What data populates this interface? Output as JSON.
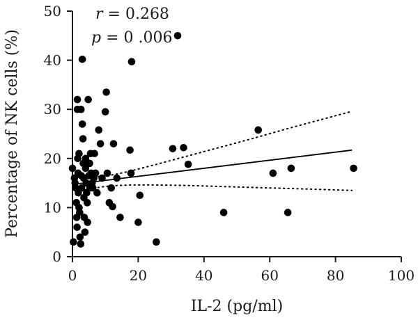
{
  "chart_data": {
    "type": "scatter",
    "title": "",
    "xlabel": "IL-2 (pg/ml)",
    "ylabel": "Percentage of NK cells (%)",
    "xlim": [
      0,
      100
    ],
    "ylim": [
      0,
      50
    ],
    "x_ticks": [
      "0",
      "20",
      "40",
      "60",
      "80",
      "100"
    ],
    "y_ticks": [
      "0",
      "10",
      "20",
      "30",
      "40",
      "50"
    ],
    "grid": false,
    "annotations": {
      "r_symbol": "r",
      "r_value": " = 0.268",
      "p_symbol": "p",
      "p_value": " = 0 .006"
    },
    "colors": {
      "points": "#000000",
      "axes": "#1a1a1a",
      "fit": "#000000"
    },
    "points": [
      [
        0,
        18
      ],
      [
        0.3,
        3
      ],
      [
        0.6,
        16
      ],
      [
        0.8,
        15
      ],
      [
        1,
        14
      ],
      [
        1.2,
        11
      ],
      [
        1.3,
        8
      ],
      [
        1.4,
        6
      ],
      [
        1.5,
        32
      ],
      [
        1.5,
        30
      ],
      [
        1.6,
        20
      ],
      [
        1.7,
        17
      ],
      [
        1.8,
        13
      ],
      [
        2,
        21
      ],
      [
        2,
        10
      ],
      [
        2.2,
        9
      ],
      [
        2.3,
        4
      ],
      [
        2.5,
        2.6
      ],
      [
        2.6,
        30
      ],
      [
        2.7,
        16.5
      ],
      [
        2.8,
        14
      ],
      [
        3,
        27
      ],
      [
        3,
        40.2
      ],
      [
        3.2,
        24
      ],
      [
        3.3,
        19
      ],
      [
        3.4,
        16
      ],
      [
        3.5,
        12
      ],
      [
        3.6,
        8
      ],
      [
        3.8,
        5
      ],
      [
        4,
        20
      ],
      [
        4,
        18
      ],
      [
        4.2,
        15
      ],
      [
        4.3,
        13
      ],
      [
        4.5,
        11
      ],
      [
        4.6,
        7
      ],
      [
        4.8,
        32
      ],
      [
        5,
        16.5
      ],
      [
        5.2,
        19
      ],
      [
        5.3,
        14
      ],
      [
        5.5,
        21
      ],
      [
        5.7,
        17
      ],
      [
        6,
        15
      ],
      [
        6.2,
        14
      ],
      [
        6.5,
        16
      ],
      [
        6.7,
        21
      ],
      [
        7,
        17
      ],
      [
        7.5,
        13
      ],
      [
        8,
        25.8
      ],
      [
        8.5,
        23
      ],
      [
        9,
        16
      ],
      [
        10,
        29.5
      ],
      [
        10.3,
        33.5
      ],
      [
        10.6,
        17
      ],
      [
        11.2,
        11
      ],
      [
        11.8,
        14
      ],
      [
        12.2,
        10.2
      ],
      [
        12.5,
        23
      ],
      [
        13.5,
        16
      ],
      [
        14.5,
        8
      ],
      [
        17.5,
        21.7
      ],
      [
        17.8,
        17
      ],
      [
        18,
        39.7
      ],
      [
        20,
        7
      ],
      [
        20.5,
        12.5
      ],
      [
        25.5,
        3
      ],
      [
        30.5,
        22
      ],
      [
        32,
        45
      ],
      [
        33.8,
        22.2
      ],
      [
        35.2,
        18.8
      ],
      [
        46,
        9
      ],
      [
        56.5,
        25.8
      ],
      [
        61,
        17
      ],
      [
        65.5,
        9
      ],
      [
        66.5,
        18
      ],
      [
        85.5,
        18
      ]
    ],
    "fit_line": {
      "x": [
        1,
        85
      ],
      "y": [
        14.8,
        21.7
      ]
    },
    "ci_upper": {
      "x": [
        1,
        2,
        4,
        6,
        8,
        10,
        14,
        18,
        25,
        35,
        45,
        55,
        65,
        75,
        85
      ],
      "y": [
        16.4,
        16.3,
        16.2,
        16.2,
        16.3,
        16.4,
        16.9,
        17.5,
        18.7,
        20.5,
        22.3,
        24.1,
        26.0,
        27.8,
        29.6
      ]
    },
    "ci_lower": {
      "x": [
        1,
        2,
        4,
        6,
        8,
        10,
        14,
        18,
        25,
        35,
        45,
        55,
        65,
        75,
        85
      ],
      "y": [
        13.2,
        13.3,
        13.6,
        13.9,
        14.1,
        14.3,
        14.5,
        14.6,
        14.6,
        14.5,
        14.3,
        14.1,
        13.9,
        13.7,
        13.5
      ]
    }
  }
}
